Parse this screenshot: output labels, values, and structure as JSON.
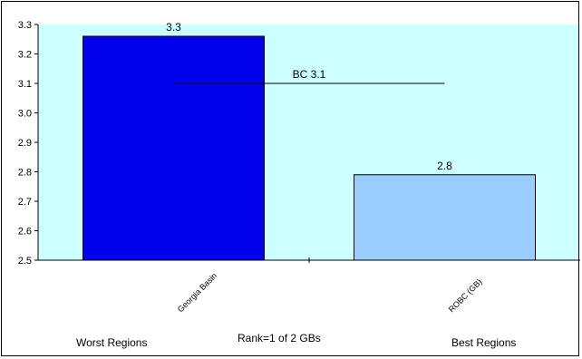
{
  "chart_data": {
    "type": "bar",
    "categories": [
      "Georgia Basin",
      "ROBC (GB)"
    ],
    "values": [
      3.26,
      2.79
    ],
    "data_labels": [
      "3.3",
      "2.8"
    ],
    "ylim": [
      2.5,
      3.3
    ],
    "yticks": [
      "2.5",
      "2.6",
      "2.7",
      "2.8",
      "2.9",
      "3.0",
      "3.1",
      "3.2",
      "3.3"
    ],
    "reference_line": {
      "value": 3.1,
      "label": "BC 3.1"
    },
    "bar_colors": [
      "#0000ee",
      "#99ccff"
    ],
    "plot_background": "#ccffff",
    "grid": false,
    "legend": "none"
  },
  "footer": {
    "left_label": "Worst Regions",
    "center_label": "Rank=1 of 2 GBs",
    "right_label": "Best Regions"
  }
}
